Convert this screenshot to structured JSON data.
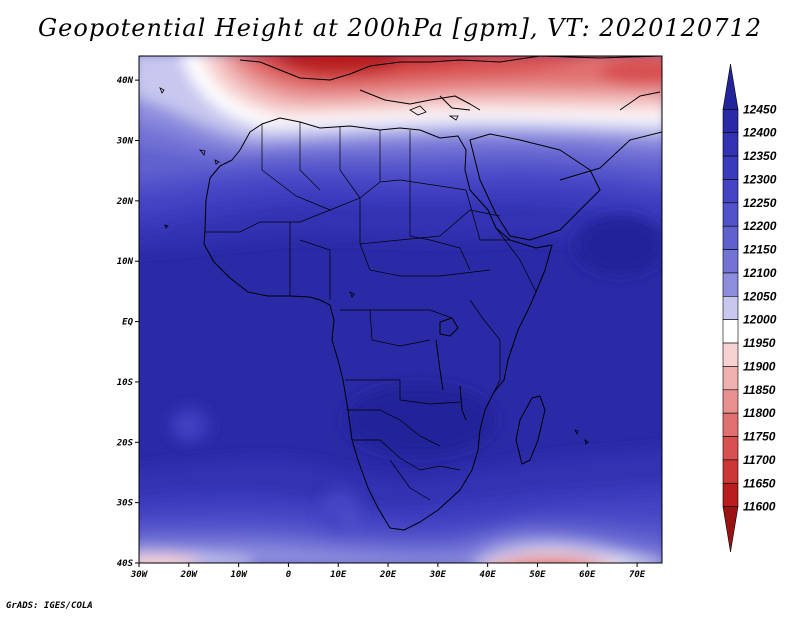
{
  "title": "Geopotential Height at 200hPa [gpm], VT: 2020120712",
  "footer": "GrADS: IGES/COLA",
  "map": {
    "lon_range": [
      -30,
      75
    ],
    "lat_range": [
      -40,
      44
    ],
    "lat_ticks": [
      {
        "value": 40,
        "label": "40N"
      },
      {
        "value": 30,
        "label": "30N"
      },
      {
        "value": 20,
        "label": "20N"
      },
      {
        "value": 10,
        "label": "10N"
      },
      {
        "value": 0,
        "label": "EQ"
      },
      {
        "value": -10,
        "label": "10S"
      },
      {
        "value": -20,
        "label": "20S"
      },
      {
        "value": -30,
        "label": "30S"
      },
      {
        "value": -40,
        "label": "40S"
      }
    ],
    "lon_ticks": [
      {
        "value": -30,
        "label": "30W"
      },
      {
        "value": -20,
        "label": "20W"
      },
      {
        "value": -10,
        "label": "10W"
      },
      {
        "value": 0,
        "label": "0"
      },
      {
        "value": 10,
        "label": "10E"
      },
      {
        "value": 20,
        "label": "20E"
      },
      {
        "value": 30,
        "label": "30E"
      },
      {
        "value": 40,
        "label": "40E"
      },
      {
        "value": 50,
        "label": "50E"
      },
      {
        "value": 60,
        "label": "60E"
      },
      {
        "value": 70,
        "label": "70E"
      }
    ]
  },
  "colorbar": {
    "labels": [
      "12450",
      "12400",
      "12350",
      "12300",
      "12250",
      "12200",
      "12150",
      "12100",
      "12050",
      "12000",
      "11950",
      "11900",
      "11850",
      "11800",
      "11750",
      "11700",
      "11650",
      "11600"
    ],
    "colors": [
      "#23239a",
      "#2a2aa6",
      "#3232b2",
      "#3a3abd",
      "#4545c4",
      "#5151ca",
      "#6060cf",
      "#7373d6",
      "#8d8dde",
      "#c7c7ef",
      "#ffffff",
      "#f7d2d2",
      "#efb0b0",
      "#e89090",
      "#e07070",
      "#d85050",
      "#cc3636",
      "#b81e1e",
      "#9a1212"
    ]
  }
}
